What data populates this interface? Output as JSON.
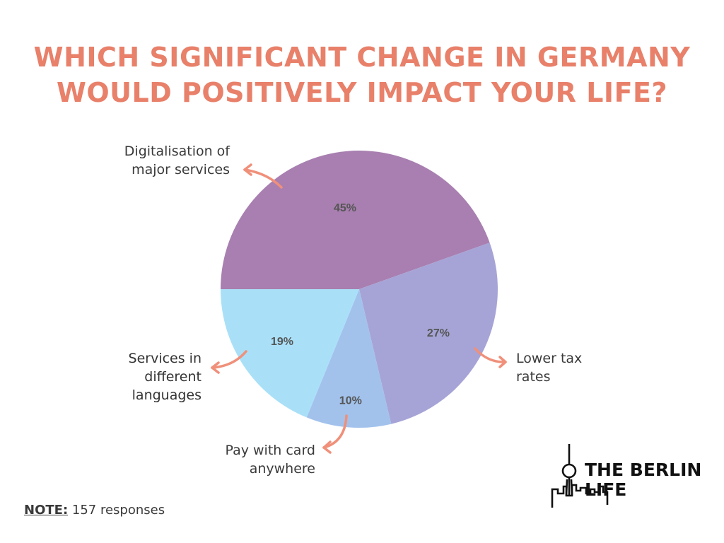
{
  "title": {
    "line1": "WHICH SIGNIFICANT CHANGE IN GERMANY",
    "line2": "WOULD POSITIVELY IMPACT YOUR LIFE?",
    "color": "#E8806A"
  },
  "chart_data": {
    "type": "pie",
    "title": "WHICH SIGNIFICANT CHANGE IN GERMANY WOULD POSITIVELY IMPACT YOUR LIFE?",
    "categories": [
      "Digitalisation of major services",
      "Lower tax rates",
      "Pay with card anywhere",
      "Services in different languages"
    ],
    "values": [
      45,
      27,
      10,
      19
    ],
    "value_labels": [
      "45%",
      "27%",
      "10%",
      "19%"
    ],
    "colors": [
      "#A87FB0",
      "#A6A4D6",
      "#A2C2EC",
      "#A9E0F8"
    ],
    "start": "180 degrees (9 o'clock), clockwise",
    "legend": "none (callout labels with arrows)",
    "arrow_color": "#F0907A"
  },
  "labels": {
    "digital": [
      "Digitalisation of",
      "major services"
    ],
    "tax": [
      "Lower tax",
      "rates"
    ],
    "card": [
      "Pay with card",
      "anywhere"
    ],
    "services": [
      "Services in",
      "different",
      "languages"
    ]
  },
  "note": {
    "key": "NOTE:",
    "text": " 157 responses"
  },
  "logo": {
    "line1": "THE BERLIN",
    "line2": "LIFE"
  }
}
